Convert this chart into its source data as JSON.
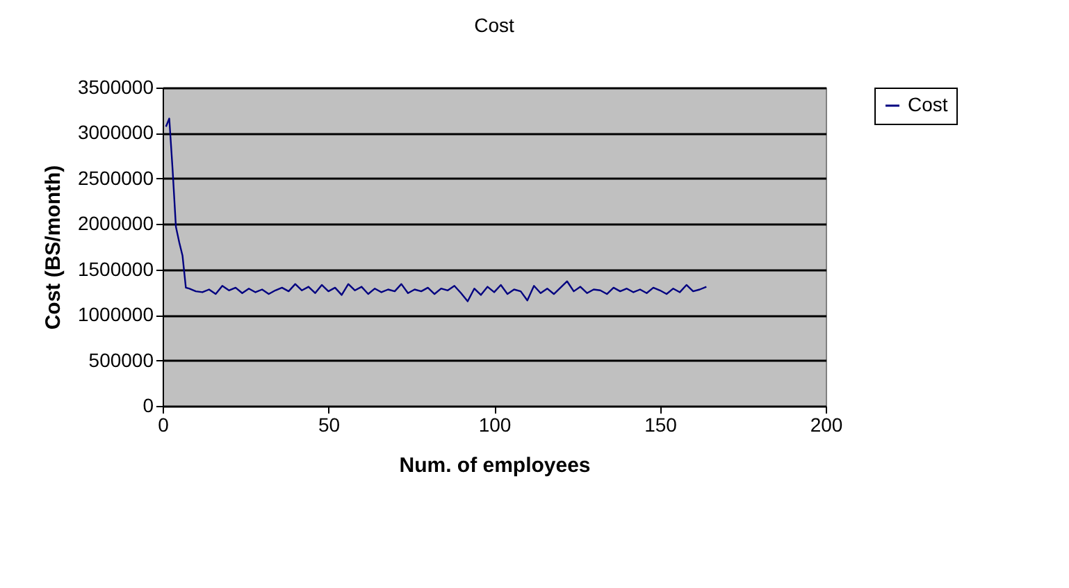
{
  "chart_data": {
    "type": "line",
    "title": "Cost",
    "xlabel": "Num. of employees",
    "ylabel": "Cost (BS/month)",
    "x": [
      1,
      2,
      3,
      4,
      5,
      6,
      7,
      8,
      10,
      12,
      14,
      16,
      18,
      20,
      22,
      24,
      26,
      28,
      30,
      32,
      34,
      36,
      38,
      40,
      42,
      44,
      46,
      48,
      50,
      52,
      54,
      56,
      58,
      60,
      62,
      64,
      66,
      68,
      70,
      72,
      74,
      76,
      78,
      80,
      82,
      84,
      86,
      88,
      90,
      92,
      94,
      96,
      98,
      100,
      102,
      104,
      106,
      108,
      110,
      112,
      114,
      116,
      118,
      120,
      122,
      124,
      126,
      128,
      130,
      132,
      134,
      136,
      138,
      140,
      142,
      144,
      146,
      148,
      150,
      152,
      154,
      156,
      158,
      160,
      162,
      164
    ],
    "series": [
      {
        "name": "Cost",
        "color": "#000080",
        "values": [
          3070000,
          3160000,
          2600000,
          1970000,
          1800000,
          1650000,
          1300000,
          1290000,
          1260000,
          1250000,
          1280000,
          1230000,
          1320000,
          1270000,
          1300000,
          1240000,
          1290000,
          1250000,
          1280000,
          1230000,
          1270000,
          1300000,
          1260000,
          1340000,
          1270000,
          1310000,
          1240000,
          1330000,
          1260000,
          1300000,
          1220000,
          1340000,
          1270000,
          1310000,
          1230000,
          1290000,
          1250000,
          1280000,
          1260000,
          1340000,
          1240000,
          1280000,
          1260000,
          1300000,
          1230000,
          1290000,
          1270000,
          1320000,
          1240000,
          1150000,
          1290000,
          1220000,
          1310000,
          1250000,
          1330000,
          1230000,
          1280000,
          1260000,
          1160000,
          1320000,
          1240000,
          1290000,
          1230000,
          1300000,
          1370000,
          1260000,
          1310000,
          1240000,
          1280000,
          1270000,
          1230000,
          1300000,
          1260000,
          1290000,
          1250000,
          1280000,
          1240000,
          1300000,
          1270000,
          1230000,
          1290000,
          1250000,
          1330000,
          1260000,
          1280000,
          1310000
        ]
      }
    ],
    "xlim": [
      0,
      200
    ],
    "xticks": [
      0,
      50,
      100,
      150,
      200
    ],
    "ylim": [
      0,
      3500000
    ],
    "yticks": [
      0,
      500000,
      1000000,
      1500000,
      2000000,
      2500000,
      3000000,
      3500000
    ],
    "grid": "y",
    "legend": "right",
    "marker": "none",
    "line_style": "solid"
  }
}
